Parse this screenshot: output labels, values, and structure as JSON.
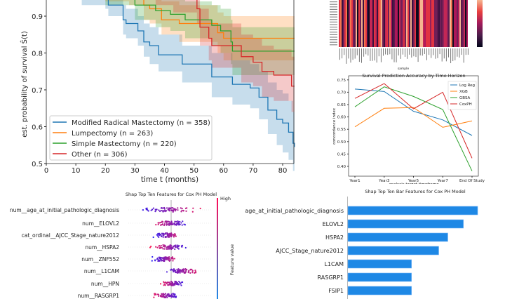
{
  "chart_data": [
    {
      "type": "line",
      "subtype": "kaplan-meier step",
      "xlabel": "time t (months)",
      "ylabel": "est. probability of survival Ŝ(t)",
      "xlim": [
        0,
        84
      ],
      "ylim": [
        0.5,
        0.95
      ],
      "xticks": [
        "0",
        "10",
        "20",
        "30",
        "40",
        "50",
        "60",
        "70",
        "80"
      ],
      "yticks": [
        "0.5",
        "0.6",
        "0.7",
        "0.8",
        "0.9"
      ],
      "legend_position": "lower-left",
      "series": [
        {
          "name": "Modified Radical Mastectomy (n = 358)",
          "color": "#1f77b4",
          "steps": [
            [
              12,
              0.96,
              0.93,
              0.99
            ],
            [
              20,
              0.95,
              0.92,
              0.98
            ],
            [
              21,
              0.93,
              0.9,
              0.96
            ],
            [
              26,
              0.89,
              0.85,
              0.93
            ],
            [
              27,
              0.88,
              0.84,
              0.92
            ],
            [
              31,
              0.86,
              0.82,
              0.9
            ],
            [
              33,
              0.83,
              0.79,
              0.88
            ],
            [
              35,
              0.82,
              0.77,
              0.87
            ],
            [
              38,
              0.795,
              0.75,
              0.85
            ],
            [
              46,
              0.77,
              0.72,
              0.82
            ],
            [
              56,
              0.735,
              0.68,
              0.8
            ],
            [
              63,
              0.715,
              0.66,
              0.78
            ],
            [
              69,
              0.705,
              0.65,
              0.77
            ],
            [
              72,
              0.68,
              0.62,
              0.75
            ],
            [
              75,
              0.645,
              0.58,
              0.72
            ],
            [
              78,
              0.62,
              0.55,
              0.7
            ],
            [
              80,
              0.61,
              0.53,
              0.69
            ],
            [
              82,
              0.585,
              0.51,
              0.67
            ],
            [
              83.5,
              0.555,
              0.48,
              0.64
            ],
            [
              84,
              0.545,
              0.47,
              0.63
            ]
          ]
        },
        {
          "name": "Lumpectomy (n = 263)",
          "color": "#ff7f0e",
          "steps": [
            [
              20,
              0.97,
              0.94,
              1.0
            ],
            [
              28,
              0.96,
              0.93,
              0.99
            ],
            [
              33,
              0.93,
              0.89,
              0.97
            ],
            [
              35,
              0.92,
              0.88,
              0.96
            ],
            [
              39,
              0.89,
              0.85,
              0.94
            ],
            [
              45,
              0.88,
              0.83,
              0.93
            ],
            [
              58,
              0.855,
              0.8,
              0.91
            ],
            [
              60,
              0.84,
              0.78,
              0.9
            ],
            [
              84,
              0.84,
              0.78,
              0.9
            ]
          ]
        },
        {
          "name": "Simple Mastectomy (n = 220)",
          "color": "#2ca02c",
          "steps": [
            [
              20,
              0.96,
              0.93,
              0.99
            ],
            [
              30,
              0.93,
              0.89,
              0.97
            ],
            [
              37,
              0.915,
              0.87,
              0.96
            ],
            [
              42,
              0.905,
              0.86,
              0.95
            ],
            [
              47,
              0.89,
              0.84,
              0.94
            ],
            [
              56,
              0.875,
              0.82,
              0.93
            ],
            [
              59,
              0.86,
              0.8,
              0.92
            ],
            [
              62.5,
              0.83,
              0.77,
              0.89
            ],
            [
              63,
              0.805,
              0.74,
              0.87
            ],
            [
              84,
              0.805,
              0.74,
              0.87
            ]
          ]
        },
        {
          "name": "Other (n = 306)",
          "color": "#d62728",
          "steps": [
            [
              30,
              0.97,
              0.95,
              0.99
            ],
            [
              37,
              0.96,
              0.93,
              0.99
            ],
            [
              43,
              0.945,
              0.91,
              0.98
            ],
            [
              51,
              0.92,
              0.88,
              0.96
            ],
            [
              52,
              0.87,
              0.82,
              0.92
            ],
            [
              55,
              0.84,
              0.78,
              0.89
            ],
            [
              56,
              0.82,
              0.76,
              0.88
            ],
            [
              66,
              0.79,
              0.72,
              0.85
            ],
            [
              70,
              0.775,
              0.71,
              0.84
            ],
            [
              73,
              0.75,
              0.68,
              0.82
            ],
            [
              77,
              0.74,
              0.67,
              0.81
            ],
            [
              83,
              0.71,
              0.64,
              0.79
            ],
            [
              84,
              0.71,
              0.64,
              0.79
            ]
          ]
        }
      ]
    },
    {
      "type": "heatmap",
      "xlabel": "sample",
      "colormap": "rocket"
    },
    {
      "type": "line",
      "title": "Survival Prediction Accuracy by Time Horizon",
      "xlabel": "analysis target timeframe",
      "ylabel": "concordance index",
      "categories": [
        "Year1",
        "Year3",
        "Year5",
        "Year7",
        "End Of Study"
      ],
      "ylim": [
        0.38,
        0.75
      ],
      "yticks": [
        "0.40",
        "0.45",
        "0.50",
        "0.55",
        "0.60",
        "0.65",
        "0.70",
        "0.75"
      ],
      "legend_position": "top-right",
      "series": [
        {
          "name": "Log Reg",
          "color": "#1f77b4",
          "values": [
            0.713,
            0.703,
            0.623,
            0.588,
            0.525
          ]
        },
        {
          "name": "XGB",
          "color": "#ff7f0e",
          "values": [
            0.56,
            0.635,
            0.638,
            0.558,
            0.584
          ]
        },
        {
          "name": "GBSA",
          "color": "#2ca02c",
          "values": [
            0.641,
            0.722,
            0.683,
            0.63,
            0.381
          ]
        },
        {
          "name": "CoxPH",
          "color": "#d62728",
          "values": [
            0.675,
            0.735,
            0.633,
            0.7,
            0.433
          ]
        }
      ]
    },
    {
      "type": "scatter",
      "subtype": "shap beeswarm",
      "title": "Shap Top Ten Features for Cox PH Model",
      "colorbar_label": "Feature value",
      "colorbar_high": "High",
      "features": [
        "num__age_at_initial_pathologic_diagnosis",
        "num__ELOVL2",
        "cat_ordinal__AJCC_Stage_nature2012",
        "num__HSPA2",
        "num__ZNF552",
        "num__L1CAM",
        "num__HPN",
        "num__RASGRP1"
      ]
    },
    {
      "type": "bar",
      "orientation": "horizontal",
      "title": "Shap Top Ten Bar Features for Cox PH Model",
      "color": "#1e88e5",
      "categories": [
        "age_at_initial_pathologic_diagnosis",
        "ELOVL2",
        "HSPA2",
        "AJCC_Stage_nature2012",
        "L1CAM",
        "RASGRP1",
        "FSIP1"
      ],
      "values": [
        1.0,
        0.89,
        0.77,
        0.7,
        0.49,
        0.49,
        0.49
      ]
    }
  ]
}
